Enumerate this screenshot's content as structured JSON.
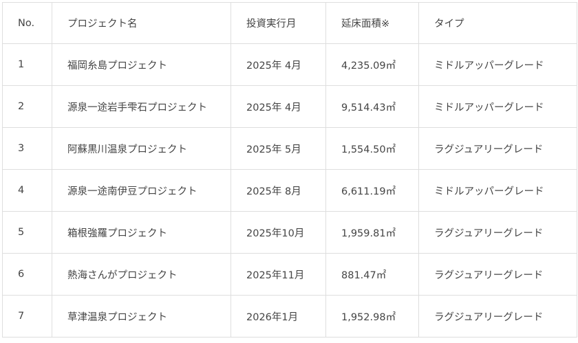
{
  "table": {
    "headers": [
      "No.",
      "プロジェクト名",
      "投資実行月",
      "延床面積※",
      "タイプ"
    ],
    "rows": [
      [
        "1",
        "福岡糸島プロジェクト",
        "2025年 4月",
        "4,235.09㎡",
        "ミドルアッパーグレード"
      ],
      [
        "2",
        "源泉一途岩手雫石プロジェクト",
        "2025年 4月",
        "9,514.43㎡",
        "ミドルアッパーグレード"
      ],
      [
        "3",
        "阿蘇黒川温泉プロジェクト",
        "2025年 5月",
        "1,554.50㎡",
        "ラグジュアリーグレード"
      ],
      [
        "4",
        "源泉一途南伊豆プロジェクト",
        "2025年 8月",
        "6,611.19㎡",
        "ミドルアッパーグレード"
      ],
      [
        "5",
        "箱根強羅プロジェクト",
        "2025年10月",
        "1,959.81㎡",
        "ラグジュアリーグレード"
      ],
      [
        "6",
        "熱海さんがプロジェクト",
        "2025年11月",
        "881.47㎡",
        "ラグジュアリーグレード"
      ],
      [
        "7",
        "草津温泉プロジェクト",
        "2026年1月",
        "1,952.98㎡",
        "ラグジュアリーグレード"
      ]
    ]
  }
}
